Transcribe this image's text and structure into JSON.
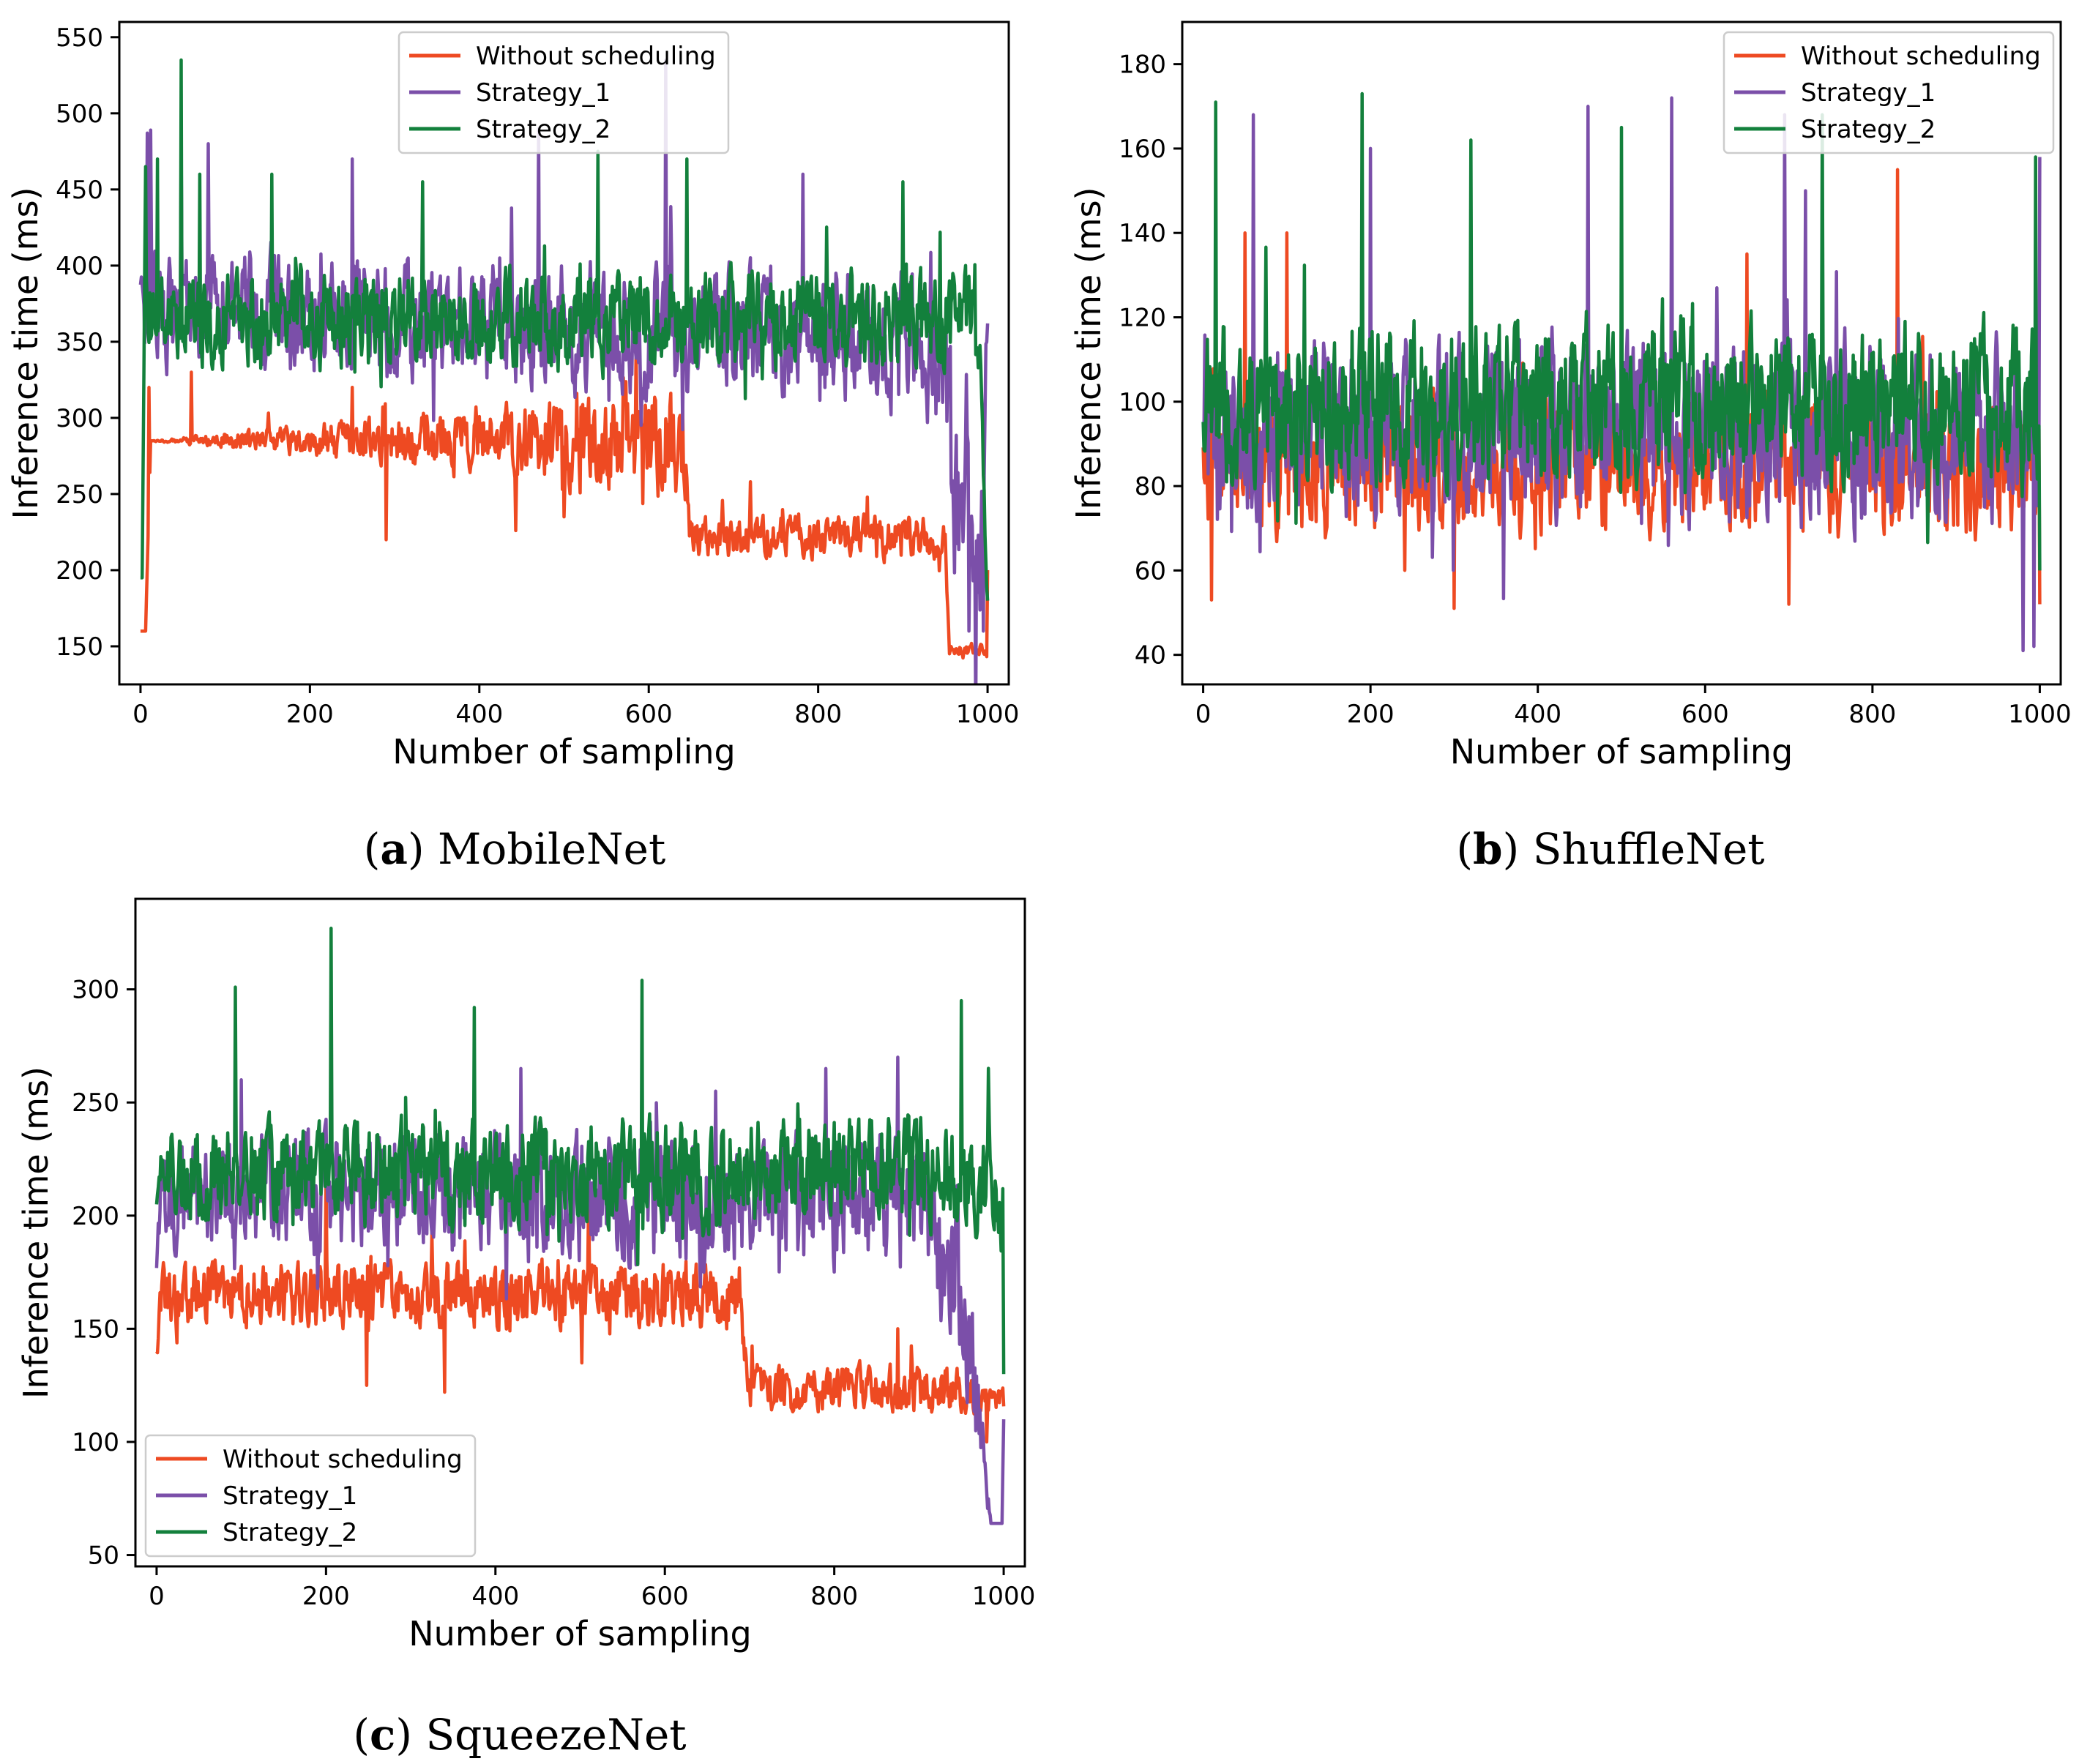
{
  "chart_data": [
    {
      "id": "a",
      "type": "line",
      "caption_letter": "a",
      "caption_name": "MobileNet",
      "xlabel": "Number of sampling",
      "ylabel": "Inference time (ms)",
      "xlim": [
        -25,
        1025
      ],
      "ylim": [
        125,
        560
      ],
      "xticks": [
        0,
        200,
        400,
        600,
        800,
        1000
      ],
      "yticks": [
        150,
        200,
        250,
        300,
        350,
        400,
        450,
        500,
        550
      ],
      "legend_loc": "upper center",
      "seed": 11,
      "series": [
        {
          "name": "Without scheduling",
          "color": "#ee4a22",
          "segments": [
            [
              0,
              160
            ],
            [
              6,
              160
            ],
            [
              12,
              285
            ],
            [
              640,
              285
            ],
            [
              650,
              222
            ],
            [
              950,
              222
            ],
            [
              955,
              148
            ],
            [
              1000,
              148
            ]
          ],
          "noise": [
            0,
            0,
            0,
            42,
            15,
            15,
            5,
            5
          ],
          "spikes": [
            [
              10,
              320
            ],
            [
              60,
              330
            ],
            [
              250,
              320
            ],
            [
              290,
              220
            ],
            [
              500,
              235
            ],
            [
              612,
              290
            ],
            [
              640,
              310
            ],
            [
              720,
              258
            ],
            [
              858,
              248
            ],
            [
              1000,
              200
            ]
          ]
        },
        {
          "name": "Strategy_1",
          "color": "#7b4fa9",
          "segments": [
            [
              0,
              375
            ],
            [
              5,
              370
            ],
            [
              900,
              352
            ],
            [
              945,
              330
            ],
            [
              960,
              250
            ],
            [
              990,
              190
            ],
            [
              1000,
              380
            ]
          ],
          "noise": [
            30,
            45,
            50,
            55,
            75,
            80,
            30
          ],
          "spikes": [
            [
              8,
              487
            ],
            [
              12,
              489
            ],
            [
              48,
              480
            ],
            [
              80,
              480
            ],
            [
              250,
              470
            ],
            [
              470,
              490
            ],
            [
              620,
              535
            ],
            [
              782,
              460
            ],
            [
              978,
              160
            ],
            [
              995,
              160
            ]
          ]
        },
        {
          "name": "Strategy_2",
          "color": "#13803c",
          "segments": [
            [
              0,
              195
            ],
            [
              2,
              195
            ],
            [
              5,
              365
            ],
            [
              900,
              365
            ],
            [
              990,
              360
            ],
            [
              1000,
              170
            ]
          ],
          "noise": [
            0,
            0,
            35,
            38,
            40,
            0
          ],
          "spikes": [
            [
              6,
              465
            ],
            [
              20,
              470
            ],
            [
              48,
              535
            ],
            [
              70,
              460
            ],
            [
              155,
              460
            ],
            [
              333,
              455
            ],
            [
              540,
              475
            ],
            [
              645,
              470
            ],
            [
              900,
              455
            ],
            [
              1000,
              180
            ]
          ]
        }
      ]
    },
    {
      "id": "b",
      "type": "line",
      "caption_letter": "b",
      "caption_name": "ShuffleNet",
      "xlabel": "Number of sampling",
      "ylabel": "Inference time (ms)",
      "xlim": [
        -25,
        1025
      ],
      "ylim": [
        33,
        190
      ],
      "xticks": [
        0,
        200,
        400,
        600,
        800,
        1000
      ],
      "yticks": [
        40,
        60,
        80,
        100,
        120,
        140,
        160,
        180
      ],
      "legend_loc": "upper right",
      "seed": 23,
      "series": [
        {
          "name": "Without scheduling",
          "color": "#ee4a22",
          "segments": [
            [
              0,
              85
            ],
            [
              1000,
              85
            ]
          ],
          "noise": [
            18,
            18
          ],
          "spikes": [
            [
              50,
              140
            ],
            [
              100,
              140
            ],
            [
              300,
              125
            ],
            [
              650,
              135
            ],
            [
              830,
              155
            ],
            [
              10,
              53
            ],
            [
              300,
              51
            ],
            [
              700,
              52
            ],
            [
              1000,
              52
            ]
          ]
        },
        {
          "name": "Strategy_1",
          "color": "#7b4fa9",
          "segments": [
            [
              0,
              95
            ],
            [
              1000,
              92
            ]
          ],
          "noise": [
            24,
            24
          ],
          "spikes": [
            [
              60,
              168
            ],
            [
              200,
              160
            ],
            [
              460,
              170
            ],
            [
              560,
              172
            ],
            [
              695,
              168
            ],
            [
              720,
              150
            ],
            [
              1000,
              158
            ],
            [
              980,
              41
            ],
            [
              993,
              42
            ]
          ]
        },
        {
          "name": "Strategy_2",
          "color": "#13803c",
          "segments": [
            [
              0,
              100
            ],
            [
              1000,
              100
            ]
          ],
          "noise": [
            22,
            22
          ],
          "spikes": [
            [
              15,
              171
            ],
            [
              190,
              173
            ],
            [
              320,
              162
            ],
            [
              500,
              165
            ],
            [
              740,
              168
            ],
            [
              995,
              158
            ],
            [
              1000,
              60
            ]
          ]
        }
      ]
    },
    {
      "id": "c",
      "type": "line",
      "caption_letter": "c",
      "caption_name": "SqueezeNet",
      "xlabel": "Number of sampling",
      "ylabel": "Inference time (ms)",
      "xlim": [
        -25,
        1025
      ],
      "ylim": [
        45,
        340
      ],
      "xticks": [
        0,
        200,
        400,
        600,
        800,
        1000
      ],
      "yticks": [
        50,
        100,
        150,
        200,
        250,
        300
      ],
      "legend_loc": "lower left",
      "seed": 37,
      "series": [
        {
          "name": "Without scheduling",
          "color": "#ee4a22",
          "segments": [
            [
              0,
              140
            ],
            [
              5,
              165
            ],
            [
              690,
              165
            ],
            [
              700,
              123
            ],
            [
              950,
              123
            ],
            [
              960,
              120
            ],
            [
              1000,
              118
            ]
          ],
          "noise": [
            0,
            16,
            18,
            12,
            12,
            8,
            8
          ],
          "spikes": [
            [
              200,
              220
            ],
            [
              248,
              125
            ],
            [
              340,
              122
            ],
            [
              510,
              210
            ],
            [
              875,
              150
            ],
            [
              980,
              100
            ]
          ]
        },
        {
          "name": "Strategy_1",
          "color": "#7b4fa9",
          "segments": [
            [
              0,
              175
            ],
            [
              5,
              210
            ],
            [
              900,
              205
            ],
            [
              945,
              175
            ],
            [
              970,
              110
            ],
            [
              985,
              64
            ],
            [
              998,
              64
            ],
            [
              1000,
              110
            ]
          ],
          "noise": [
            10,
            30,
            35,
            40,
            30,
            0,
            0,
            0
          ],
          "spikes": [
            [
              100,
              260
            ],
            [
              430,
              265
            ],
            [
              660,
              255
            ],
            [
              790,
              265
            ],
            [
              875,
              270
            ],
            [
              990,
              64
            ]
          ]
        },
        {
          "name": "Strategy_2",
          "color": "#13803c",
          "segments": [
            [
              0,
              205
            ],
            [
              5,
              218
            ],
            [
              900,
              220
            ],
            [
              1000,
              215
            ]
          ],
          "noise": [
            0,
            25,
            28,
            25
          ],
          "spikes": [
            [
              93,
              301
            ],
            [
              206,
              327
            ],
            [
              375,
              292
            ],
            [
              573,
              304
            ],
            [
              950,
              295
            ],
            [
              1000,
              130
            ]
          ]
        }
      ]
    }
  ]
}
